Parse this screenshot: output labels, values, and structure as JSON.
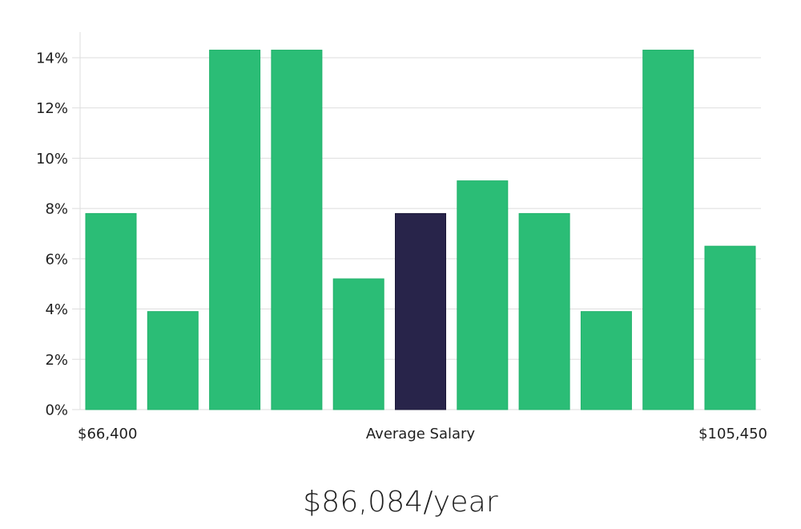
{
  "chart_data": {
    "type": "bar",
    "values": [
      7.8,
      3.9,
      14.3,
      14.3,
      5.2,
      7.8,
      9.1,
      7.8,
      3.9,
      14.3,
      6.5
    ],
    "highlight_index": 5,
    "ylim": [
      0,
      15
    ],
    "yticks": [
      0,
      2,
      4,
      6,
      8,
      10,
      12,
      14
    ],
    "ytick_labels": [
      "0%",
      "2%",
      "4%",
      "6%",
      "8%",
      "10%",
      "12%",
      "14%"
    ],
    "x_labels": {
      "min": "$66,400",
      "center": "Average Salary",
      "max": "$105,450"
    },
    "grid": true,
    "colors": {
      "bar": "#2bbd76",
      "bar_stroke": "#22b26c",
      "highlight": "#28244a",
      "highlight_stroke": "#1c1838",
      "grid": "#dedede"
    }
  },
  "summary": {
    "average_salary_text": "$86,084/year"
  }
}
